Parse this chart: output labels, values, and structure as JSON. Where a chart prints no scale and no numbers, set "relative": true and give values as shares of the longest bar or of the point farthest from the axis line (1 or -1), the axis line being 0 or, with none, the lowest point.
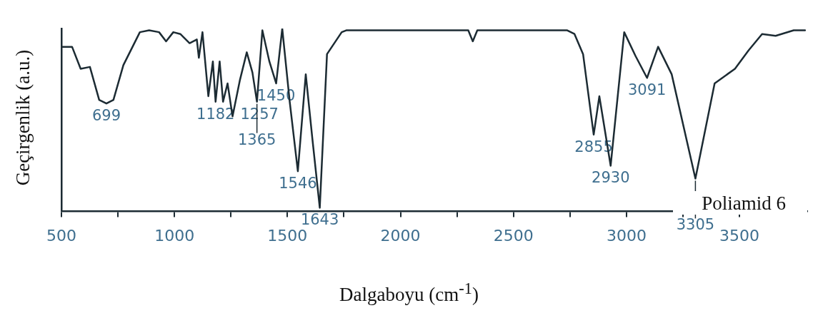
{
  "chart_data": {
    "type": "line",
    "xlabel": "Dalgaboyu (cm$^{-1}$)",
    "ylabel": "Geçirgenlik  (a.u.)",
    "relative": true,
    "marker": "none",
    "line_style": "solid",
    "legend": false,
    "grid": false,
    "xlim": [
      500,
      3800
    ],
    "xticks": [
      500,
      {
        "value": 750,
        "label": null
      },
      1000,
      {
        "value": 1250,
        "label": null
      },
      1500,
      {
        "value": 1750,
        "label": null
      },
      2000,
      {
        "value": 2250,
        "label": null
      },
      2500,
      {
        "value": 2750,
        "label": null
      },
      3000,
      {
        "value": 3250,
        "label": null
      },
      3500
    ],
    "series": [
      {
        "color": "#1c2b33",
        "x": [
          500,
          547,
          585,
          626,
          667,
          699,
          730,
          774,
          847,
          888,
          932,
          963,
          995,
          1026,
          1067,
          1099,
          1108,
          1124,
          1150,
          1170,
          1182,
          1200,
          1215,
          1235,
          1257,
          1290,
          1320,
          1345,
          1365,
          1389,
          1420,
          1450,
          1477,
          1510,
          1546,
          1581,
          1610,
          1643,
          1675,
          1740,
          1760,
          2000,
          2300,
          2320,
          2340,
          2600,
          2738,
          2770,
          2808,
          2855,
          2880,
          2930,
          2990,
          3040,
          3091,
          3140,
          3200,
          3305,
          3390,
          3480,
          3540,
          3600,
          3660,
          3740,
          3790
        ],
        "values": [
          0.9,
          0.9,
          0.78,
          0.79,
          0.61,
          0.59,
          0.61,
          0.8,
          0.98,
          0.99,
          0.98,
          0.93,
          0.98,
          0.97,
          0.92,
          0.94,
          0.84,
          0.98,
          0.63,
          0.82,
          0.6,
          0.82,
          0.6,
          0.7,
          0.52,
          0.72,
          0.87,
          0.76,
          0.6,
          0.99,
          0.82,
          0.7,
          1.0,
          0.6,
          0.22,
          0.75,
          0.4,
          0.02,
          0.86,
          0.98,
          0.99,
          0.99,
          0.99,
          0.93,
          0.99,
          0.99,
          0.99,
          0.97,
          0.86,
          0.42,
          0.63,
          0.25,
          0.98,
          0.85,
          0.73,
          0.9,
          0.75,
          0.18,
          0.7,
          0.78,
          0.88,
          0.97,
          0.96,
          0.99,
          0.99
        ]
      }
    ],
    "annotations": [
      {
        "text": "699",
        "x": 699,
        "y": 0.59
      },
      {
        "text": "1182",
        "x": 1182,
        "y": 0.6
      },
      {
        "text": "1257",
        "x": 1257,
        "y": 0.52
      },
      {
        "text": "1365",
        "x": 1365,
        "y": 0.6
      },
      {
        "text": "1450",
        "x": 1450,
        "y": 0.7
      },
      {
        "text": "1546",
        "x": 1546,
        "y": 0.22
      },
      {
        "text": "1643",
        "x": 1643,
        "y": 0.02
      },
      {
        "text": "2855",
        "x": 2855,
        "y": 0.42
      },
      {
        "text": "2930",
        "x": 2930,
        "y": 0.25
      },
      {
        "text": "3091",
        "x": 3091,
        "y": 0.73
      },
      {
        "text": "3305",
        "x": 3305,
        "y": 0.18
      },
      "Poliamid 6"
    ]
  }
}
